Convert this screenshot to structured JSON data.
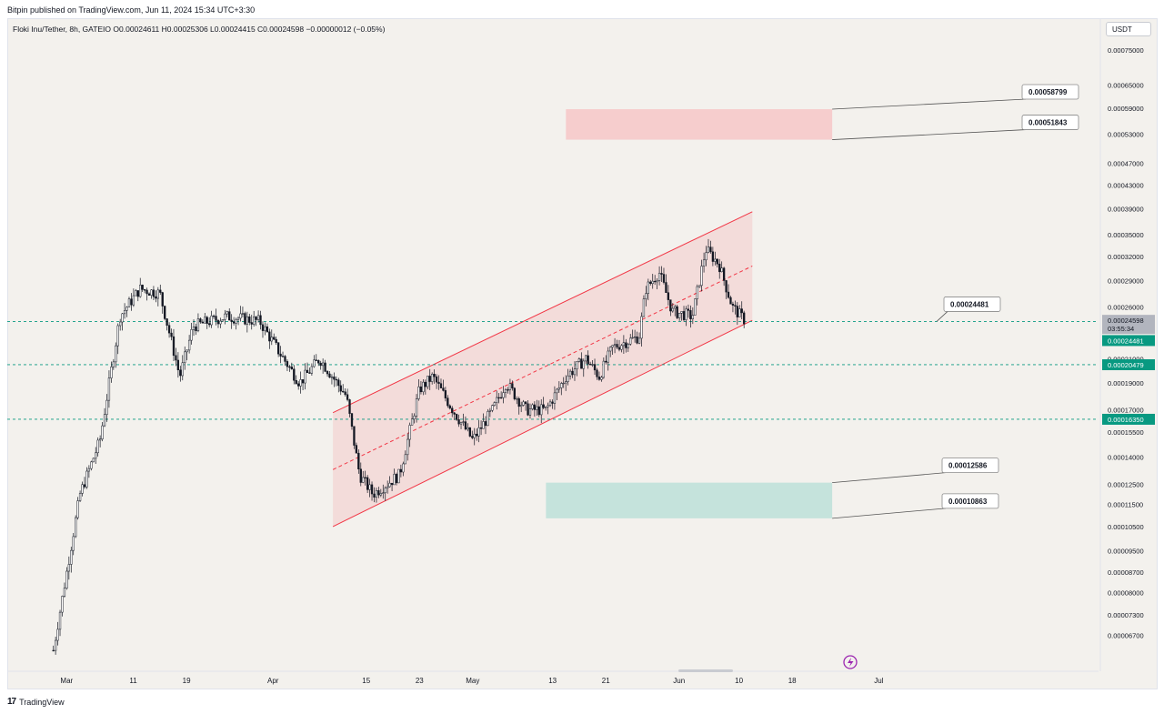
{
  "header": {
    "published_line": "Bitpin published on TradingView.com, Jun 11, 2024 15:34 UTC+3:30",
    "symbol_line": "Floki Inu/Tether, 8h, GATEIO  O0.00024611  H0.00025306  L0.00024415  C0.00024598  −0.00000012 (−0.05%)",
    "currency": "USDT"
  },
  "footer": {
    "brand": "TradingView",
    "logo": "tv-logo-icon"
  },
  "colors": {
    "channel_fill": "#f4c4c4",
    "channel_line": "#f23645",
    "sell_zone": "#f6cdcd",
    "buy_zone": "#c5e3dc",
    "support_line": "#089981",
    "candle": "#131722",
    "current_price_tag": "#b2b5be",
    "support_tag": "#089981"
  },
  "chart_data": {
    "type": "candlestick",
    "title": "",
    "y_scale": "log",
    "ylim": [
      6e-05,
      0.0008
    ],
    "y_ticks": [
      "0.00075000",
      "0.00065000",
      "0.00059000",
      "0.00053000",
      "0.00047000",
      "0.00043000",
      "0.00039000",
      "0.00035000",
      "0.00032000",
      "0.00029000",
      "0.00026000",
      "0.00021000",
      "0.00019000",
      "0.00017000",
      "0.00015500",
      "0.00014000",
      "0.00012500",
      "0.00011500",
      "0.00010500",
      "0.00009500",
      "0.00008700",
      "0.00008000",
      "0.00007300",
      "0.00006700"
    ],
    "x_ticks": [
      "Mar",
      "11",
      "19",
      "Apr",
      "15",
      "23",
      "May",
      "13",
      "21",
      "Jun",
      "10",
      "18",
      "Jul"
    ],
    "price_path": [
      {
        "date": "2024-02-28",
        "price": 6.3e-05
      },
      {
        "date": "2024-03-03",
        "price": 0.00012
      },
      {
        "date": "2024-03-06",
        "price": 0.00015
      },
      {
        "date": "2024-03-09",
        "price": 0.00025
      },
      {
        "date": "2024-03-12",
        "price": 0.00028
      },
      {
        "date": "2024-03-15",
        "price": 0.000275
      },
      {
        "date": "2024-03-18",
        "price": 0.000195
      },
      {
        "date": "2024-03-20",
        "price": 0.00024
      },
      {
        "date": "2024-03-25",
        "price": 0.00025
      },
      {
        "date": "2024-03-30",
        "price": 0.000245
      },
      {
        "date": "2024-04-02",
        "price": 0.000215
      },
      {
        "date": "2024-04-05",
        "price": 0.00019
      },
      {
        "date": "2024-04-08",
        "price": 0.00021
      },
      {
        "date": "2024-04-12",
        "price": 0.00018
      },
      {
        "date": "2024-04-14",
        "price": 0.00013
      },
      {
        "date": "2024-04-16",
        "price": 0.00012
      },
      {
        "date": "2024-04-20",
        "price": 0.00013
      },
      {
        "date": "2024-04-23",
        "price": 0.000185
      },
      {
        "date": "2024-04-25",
        "price": 0.000195
      },
      {
        "date": "2024-04-28",
        "price": 0.00017
      },
      {
        "date": "2024-05-01",
        "price": 0.00015
      },
      {
        "date": "2024-05-04",
        "price": 0.00017
      },
      {
        "date": "2024-05-06",
        "price": 0.00019
      },
      {
        "date": "2024-05-09",
        "price": 0.00017
      },
      {
        "date": "2024-05-12",
        "price": 0.00017
      },
      {
        "date": "2024-05-15",
        "price": 0.000195
      },
      {
        "date": "2024-05-18",
        "price": 0.00021
      },
      {
        "date": "2024-05-20",
        "price": 0.000195
      },
      {
        "date": "2024-05-22",
        "price": 0.00022
      },
      {
        "date": "2024-05-26",
        "price": 0.00023
      },
      {
        "date": "2024-05-27",
        "price": 0.00028
      },
      {
        "date": "2024-05-29",
        "price": 0.0003
      },
      {
        "date": "2024-05-31",
        "price": 0.000255
      },
      {
        "date": "2024-06-03",
        "price": 0.00025
      },
      {
        "date": "2024-06-05",
        "price": 0.00033
      },
      {
        "date": "2024-06-07",
        "price": 0.00031
      },
      {
        "date": "2024-06-09",
        "price": 0.00026
      },
      {
        "date": "2024-06-11",
        "price": 0.000245
      }
    ],
    "annotations": {
      "channel": {
        "start": "2024-04-10",
        "end": "2024-06-12",
        "lower_start": 0.000105,
        "lower_end": 0.000246,
        "upper_start": 0.000168,
        "upper_end": 0.000385
      },
      "sell_zone": {
        "start": "2024-05-15",
        "end": "2024-06-24",
        "low": 0.00051843,
        "high": 0.00058799,
        "labels": [
          "0.00058799",
          "0.00051843"
        ]
      },
      "buy_zone": {
        "start": "2024-05-12",
        "end": "2024-06-24",
        "low": 0.00010863,
        "high": 0.00012586,
        "labels": [
          "0.00012586",
          "0.00010863"
        ]
      },
      "target_label": {
        "value": "0.00024481"
      },
      "support_lines": [
        0.00024481,
        0.00020479,
        0.0001635
      ]
    },
    "price_tags": [
      {
        "value": "0.00024598",
        "sub": "03:55:34",
        "kind": "current"
      },
      {
        "value": "0.00024481",
        "kind": "support"
      },
      {
        "value": "0.00020479",
        "kind": "support"
      },
      {
        "value": "0.00016350",
        "kind": "support"
      }
    ]
  }
}
